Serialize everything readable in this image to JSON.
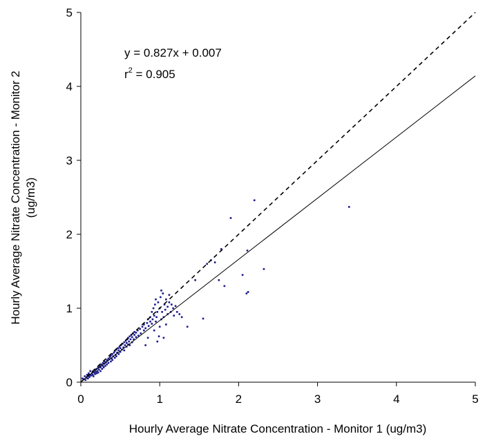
{
  "chart_data": {
    "type": "scatter",
    "xlabel": "Hourly Average Nitrate Concentration - Monitor 1 (ug/m3)",
    "ylabel_line1": "Hourly Average Nitrate Concentration - Monitor 2",
    "ylabel_line2": "(ug/m3)",
    "xlim": [
      0,
      5
    ],
    "ylim": [
      0,
      5
    ],
    "x_ticks": [
      "0",
      "1",
      "2",
      "3",
      "4",
      "5"
    ],
    "y_ticks": [
      "0",
      "1",
      "2",
      "3",
      "4",
      "5"
    ],
    "grid": false,
    "annotations": {
      "equation": "y = 0.827x + 0.007",
      "r2_prefix": "r",
      "r2_sup": "2",
      "r2_value": " = 0.905"
    },
    "regression_line": {
      "slope": 0.827,
      "intercept": 0.007
    },
    "identity_line": {
      "slope": 1,
      "intercept": 0,
      "style": "dashed"
    },
    "marker_color": "#1a1a8c",
    "series": [
      {
        "points": [
          [
            0.02,
            0.05
          ],
          [
            0.04,
            0.04
          ],
          [
            0.05,
            0.08
          ],
          [
            0.06,
            0.03
          ],
          [
            0.07,
            0.06
          ],
          [
            0.08,
            0.1
          ],
          [
            0.09,
            0.05
          ],
          [
            0.1,
            0.08
          ],
          [
            0.1,
            0.12
          ],
          [
            0.11,
            0.07
          ],
          [
            0.12,
            0.1
          ],
          [
            0.12,
            0.15
          ],
          [
            0.13,
            0.09
          ],
          [
            0.14,
            0.12
          ],
          [
            0.15,
            0.1
          ],
          [
            0.15,
            0.14
          ],
          [
            0.16,
            0.08
          ],
          [
            0.17,
            0.13
          ],
          [
            0.18,
            0.11
          ],
          [
            0.18,
            0.17
          ],
          [
            0.19,
            0.14
          ],
          [
            0.2,
            0.12
          ],
          [
            0.2,
            0.18
          ],
          [
            0.21,
            0.15
          ],
          [
            0.22,
            0.2
          ],
          [
            0.22,
            0.13
          ],
          [
            0.23,
            0.17
          ],
          [
            0.24,
            0.22
          ],
          [
            0.25,
            0.15
          ],
          [
            0.25,
            0.2
          ],
          [
            0.26,
            0.24
          ],
          [
            0.27,
            0.18
          ],
          [
            0.28,
            0.22
          ],
          [
            0.28,
            0.26
          ],
          [
            0.29,
            0.2
          ],
          [
            0.3,
            0.25
          ],
          [
            0.3,
            0.28
          ],
          [
            0.31,
            0.22
          ],
          [
            0.32,
            0.27
          ],
          [
            0.33,
            0.3
          ],
          [
            0.33,
            0.24
          ],
          [
            0.34,
            0.29
          ],
          [
            0.35,
            0.32
          ],
          [
            0.35,
            0.26
          ],
          [
            0.36,
            0.31
          ],
          [
            0.37,
            0.34
          ],
          [
            0.38,
            0.28
          ],
          [
            0.38,
            0.36
          ],
          [
            0.39,
            0.32
          ],
          [
            0.4,
            0.38
          ],
          [
            0.4,
            0.3
          ],
          [
            0.41,
            0.35
          ],
          [
            0.42,
            0.4
          ],
          [
            0.43,
            0.33
          ],
          [
            0.43,
            0.42
          ],
          [
            0.44,
            0.37
          ],
          [
            0.45,
            0.44
          ],
          [
            0.45,
            0.35
          ],
          [
            0.46,
            0.4
          ],
          [
            0.47,
            0.46
          ],
          [
            0.48,
            0.38
          ],
          [
            0.48,
            0.43
          ],
          [
            0.49,
            0.48
          ],
          [
            0.5,
            0.41
          ],
          [
            0.5,
            0.46
          ],
          [
            0.51,
            0.5
          ],
          [
            0.52,
            0.44
          ],
          [
            0.53,
            0.52
          ],
          [
            0.54,
            0.47
          ],
          [
            0.55,
            0.54
          ],
          [
            0.55,
            0.43
          ],
          [
            0.56,
            0.5
          ],
          [
            0.57,
            0.56
          ],
          [
            0.58,
            0.48
          ],
          [
            0.58,
            0.53
          ],
          [
            0.59,
            0.58
          ],
          [
            0.6,
            0.51
          ],
          [
            0.6,
            0.6
          ],
          [
            0.61,
            0.55
          ],
          [
            0.62,
            0.62
          ],
          [
            0.62,
            0.5
          ],
          [
            0.63,
            0.58
          ],
          [
            0.64,
            0.64
          ],
          [
            0.65,
            0.54
          ],
          [
            0.65,
            0.61
          ],
          [
            0.66,
            0.66
          ],
          [
            0.67,
            0.58
          ],
          [
            0.68,
            0.64
          ],
          [
            0.68,
            0.68
          ],
          [
            0.7,
            0.61
          ],
          [
            0.7,
            0.67
          ],
          [
            0.72,
            0.7
          ],
          [
            0.73,
            0.63
          ],
          [
            0.75,
            0.72
          ],
          [
            0.76,
            0.66
          ],
          [
            0.78,
            0.75
          ],
          [
            0.8,
            0.7
          ],
          [
            0.8,
            0.78
          ],
          [
            0.82,
            0.73
          ],
          [
            0.82,
            0.5
          ],
          [
            0.84,
            0.8
          ],
          [
            0.85,
            0.6
          ],
          [
            0.85,
            0.85
          ],
          [
            0.86,
            0.76
          ],
          [
            0.88,
            0.82
          ],
          [
            0.88,
            0.88
          ],
          [
            0.9,
            0.79
          ],
          [
            0.9,
            0.95
          ],
          [
            0.91,
            0.85
          ],
          [
            0.92,
            1.0
          ],
          [
            0.93,
            0.7
          ],
          [
            0.93,
            0.9
          ],
          [
            0.94,
            1.05
          ],
          [
            0.95,
            0.82
          ],
          [
            0.95,
            1.12
          ],
          [
            0.96,
            0.88
          ],
          [
            0.97,
            0.95
          ],
          [
            0.97,
            0.55
          ],
          [
            0.98,
            1.08
          ],
          [
            0.99,
            0.62
          ],
          [
            1.0,
            1.0
          ],
          [
            1.0,
            0.75
          ],
          [
            1.01,
            1.15
          ],
          [
            1.02,
            0.85
          ],
          [
            1.02,
            1.24
          ],
          [
            1.03,
            0.95
          ],
          [
            1.04,
            1.2
          ],
          [
            1.05,
            0.88
          ],
          [
            1.05,
            0.6
          ],
          [
            1.06,
            1.05
          ],
          [
            1.07,
            0.98
          ],
          [
            1.08,
            1.12
          ],
          [
            1.08,
            0.78
          ],
          [
            1.1,
            1.02
          ],
          [
            1.1,
            0.92
          ],
          [
            1.12,
            1.08
          ],
          [
            1.12,
            1.18
          ],
          [
            1.14,
            0.95
          ],
          [
            1.15,
            1.05
          ],
          [
            1.17,
            1.0
          ],
          [
            1.18,
            0.9
          ],
          [
            1.2,
            1.03
          ],
          [
            1.22,
            0.95
          ],
          [
            1.25,
            0.92
          ],
          [
            1.28,
            0.88
          ],
          [
            1.35,
            0.75
          ],
          [
            1.45,
            1.38
          ],
          [
            1.55,
            0.86
          ],
          [
            1.6,
            1.6
          ],
          [
            1.65,
            1.65
          ],
          [
            1.7,
            1.62
          ],
          [
            1.75,
            1.38
          ],
          [
            1.78,
            1.8
          ],
          [
            1.82,
            1.3
          ],
          [
            1.9,
            2.22
          ],
          [
            2.05,
            1.45
          ],
          [
            2.1,
            1.2
          ],
          [
            2.11,
            1.78
          ],
          [
            2.12,
            1.22
          ],
          [
            2.2,
            2.46
          ],
          [
            2.32,
            1.53
          ],
          [
            3.4,
            2.37
          ]
        ]
      }
    ]
  }
}
